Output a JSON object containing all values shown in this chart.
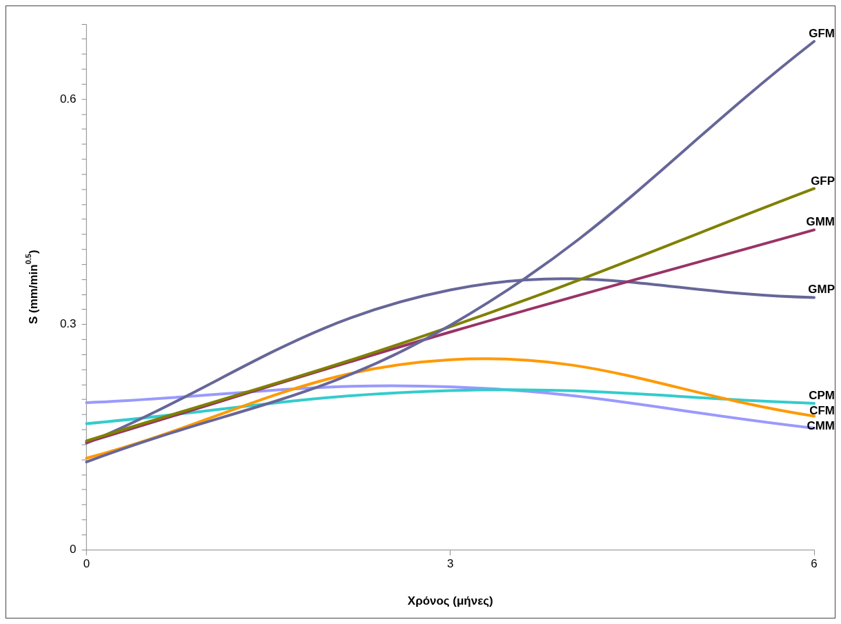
{
  "chart_data": {
    "type": "line",
    "xlabel": "Χρόνος (μήνες)",
    "ylabel": "S (mm/min$^{0.5}$)",
    "x": [
      0,
      3,
      6
    ],
    "xlim": [
      0,
      6
    ],
    "xticks": [
      0,
      3,
      6
    ],
    "ylim": [
      0,
      0.7
    ],
    "yticks": [
      0,
      {
        "value": 0.02,
        "label": null
      },
      {
        "value": 0.04,
        "label": null
      },
      {
        "value": 0.06,
        "label": null
      },
      {
        "value": 0.08,
        "label": null
      },
      {
        "value": 0.1,
        "label": null
      },
      {
        "value": 0.12,
        "label": null
      },
      {
        "value": 0.14,
        "label": null
      },
      {
        "value": 0.16,
        "label": null
      },
      {
        "value": 0.18,
        "label": null
      },
      {
        "value": 0.2,
        "label": null
      },
      {
        "value": 0.22,
        "label": null
      },
      {
        "value": 0.24,
        "label": null
      },
      {
        "value": 0.26,
        "label": null
      },
      {
        "value": 0.28,
        "label": null
      },
      0.3,
      {
        "value": 0.32,
        "label": null
      },
      {
        "value": 0.34,
        "label": null
      },
      {
        "value": 0.36,
        "label": null
      },
      {
        "value": 0.38,
        "label": null
      },
      {
        "value": 0.4,
        "label": null
      },
      {
        "value": 0.42,
        "label": null
      },
      {
        "value": 0.44,
        "label": null
      },
      {
        "value": 0.46,
        "label": null
      },
      {
        "value": 0.48,
        "label": null
      },
      {
        "value": 0.5,
        "label": null
      },
      {
        "value": 0.52,
        "label": null
      },
      {
        "value": 0.54,
        "label": null
      },
      {
        "value": 0.56,
        "label": null
      },
      {
        "value": 0.58,
        "label": null
      },
      0.6,
      {
        "value": 0.62,
        "label": null
      },
      {
        "value": 0.64,
        "label": null
      },
      {
        "value": 0.66,
        "label": null
      },
      {
        "value": 0.68,
        "label": null
      },
      {
        "value": 0.7,
        "label": null
      }
    ],
    "grid": false,
    "legend": false,
    "marker": "none",
    "line_style": "solid",
    "series": [
      {
        "name": "GFM",
        "color": "#666699",
        "values": [
          0.117,
          0.299,
          0.677
        ]
      },
      {
        "name": "GFP",
        "color": "#808000",
        "values": [
          0.145,
          0.297,
          0.481
        ]
      },
      {
        "name": "GMM",
        "color": "#993366",
        "values": [
          0.143,
          0.29,
          0.426
        ]
      },
      {
        "name": "GMP",
        "color": "#666699",
        "values": [
          0.142,
          0.346,
          0.336
        ]
      },
      {
        "name": "CFM",
        "color": "#ff9900",
        "values": [
          0.122,
          0.253,
          0.178
        ]
      },
      {
        "name": "CPM",
        "color": "#33cccc",
        "values": [
          0.168,
          0.212,
          0.195
        ]
      },
      {
        "name": "CMM",
        "color": "#9999ff",
        "values": [
          0.196,
          0.217,
          0.162
        ]
      }
    ]
  }
}
